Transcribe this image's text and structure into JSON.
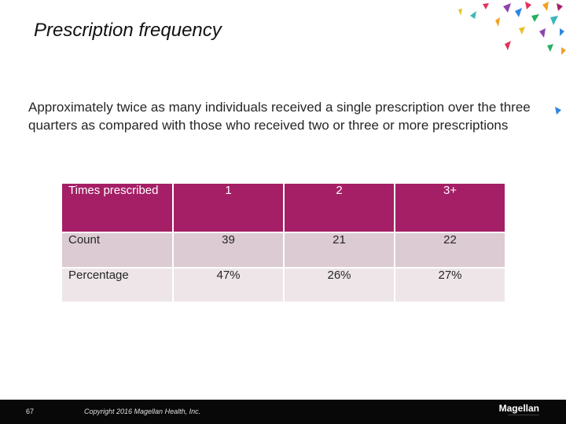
{
  "slide": {
    "title": "Prescription frequency",
    "body": "Approximately twice as many individuals received a single prescription over the three quarters as compared with those who received two or three or more prescriptions"
  },
  "table": {
    "header": [
      "Times prescribed",
      "1",
      "2",
      "3+"
    ],
    "rows": [
      [
        "Count",
        "39",
        "21",
        "22"
      ],
      [
        "Percentage",
        "47%",
        "26%",
        "27%"
      ]
    ]
  },
  "footer": {
    "slide_number": "67",
    "copyright": "Copyright 2016 Magellan Health, Inc.",
    "logo": "Magellan"
  },
  "colors": {
    "accent": "#a51f66",
    "row_dark": "#dccbd2",
    "row_light": "#ede5e8"
  }
}
